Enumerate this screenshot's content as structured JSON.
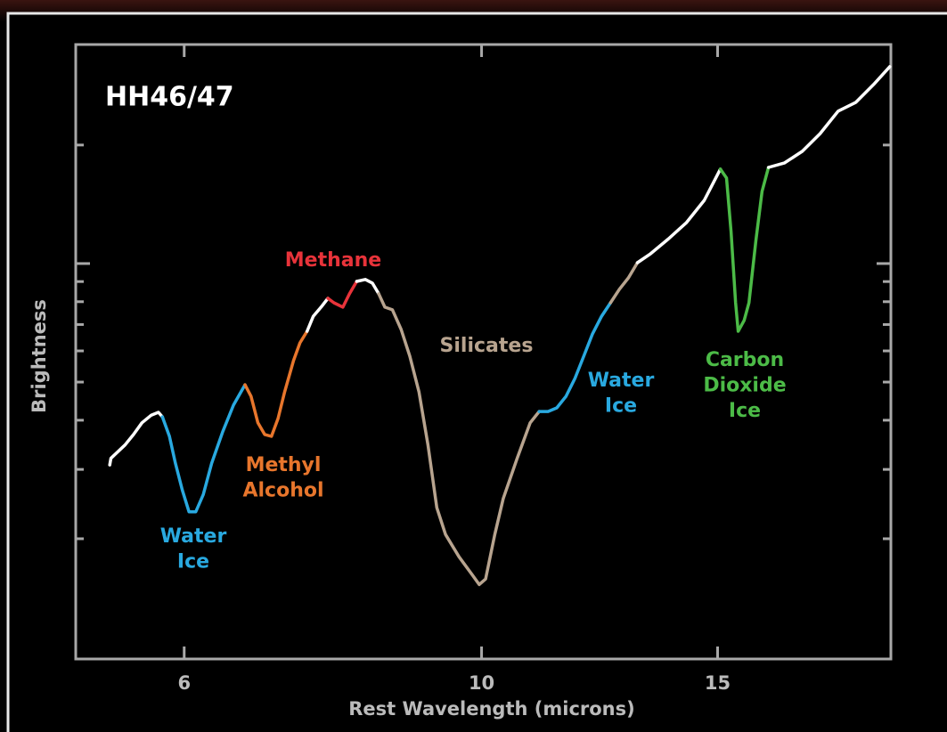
{
  "chart_data": {
    "type": "line",
    "title": "HH46/47",
    "xlabel": "Rest Wavelength (microns)",
    "ylabel": "Brightness",
    "xscale": "log",
    "yscale": "log",
    "xlim": [
      4.98,
      20.2
    ],
    "ylim": [
      0.099,
      3.6
    ],
    "xticks": [
      6,
      10,
      15
    ],
    "yticks": [
      0.2,
      0.3,
      0.4,
      0.5,
      0.6,
      0.7,
      0.8,
      0.9,
      1,
      2
    ],
    "series": [
      {
        "color": "#ffffff",
        "x": [
          5.28,
          5.29,
          5.33,
          5.42,
          5.5,
          5.58,
          5.67,
          5.74,
          5.78
        ],
        "values": [
          0.308,
          0.32,
          0.328,
          0.346,
          0.368,
          0.394,
          0.412,
          0.419,
          0.408
        ]
      },
      {
        "color": "#29a9e0",
        "x": [
          5.78,
          5.85,
          5.91,
          5.98,
          6.05,
          6.12,
          6.2,
          6.29,
          6.41,
          6.53,
          6.66
        ],
        "values": [
          0.408,
          0.364,
          0.311,
          0.266,
          0.234,
          0.234,
          0.259,
          0.311,
          0.374,
          0.437,
          0.492
        ]
      },
      {
        "color": "#e8762c",
        "x": [
          6.66,
          6.73,
          6.81,
          6.89,
          6.97,
          7.05,
          7.13,
          7.24,
          7.32,
          7.41
        ],
        "values": [
          0.492,
          0.46,
          0.394,
          0.368,
          0.364,
          0.404,
          0.472,
          0.567,
          0.629,
          0.673
        ]
      },
      {
        "color": "#ffffff",
        "x": [
          7.41,
          7.49,
          7.59,
          7.68
        ],
        "values": [
          0.673,
          0.735,
          0.775,
          0.816
        ]
      },
      {
        "color": "#e8333a",
        "x": [
          7.68,
          7.76,
          7.88,
          7.97,
          8.07
        ],
        "values": [
          0.816,
          0.795,
          0.775,
          0.838,
          0.901
        ]
      },
      {
        "color": "#ffffff",
        "x": [
          8.07,
          8.19,
          8.29,
          8.38
        ],
        "values": [
          0.901,
          0.911,
          0.892,
          0.838
        ]
      },
      {
        "color": "#b8a48f",
        "x": [
          8.38,
          8.47,
          8.58,
          8.71,
          8.84,
          8.98,
          9.12,
          9.26,
          9.4,
          9.62,
          9.84,
          9.96,
          10.07,
          10.23,
          10.38,
          10.63,
          10.87,
          11.04
        ],
        "values": [
          0.838,
          0.775,
          0.763,
          0.68,
          0.582,
          0.472,
          0.346,
          0.24,
          0.205,
          0.18,
          0.162,
          0.153,
          0.158,
          0.205,
          0.253,
          0.32,
          0.394,
          0.421
        ]
      },
      {
        "color": "#29a9e0",
        "x": [
          11.04,
          11.21,
          11.38,
          11.56,
          11.74,
          11.92,
          12.1,
          12.29,
          12.48
        ],
        "values": [
          0.421,
          0.421,
          0.43,
          0.46,
          0.511,
          0.582,
          0.663,
          0.735,
          0.795
        ]
      },
      {
        "color": "#b8a48f",
        "x": [
          12.48,
          12.67,
          12.87,
          13.07
        ],
        "values": [
          0.795,
          0.86,
          0.92,
          1.005
        ]
      },
      {
        "color": "#ffffff",
        "x": [
          13.07,
          13.37,
          13.79,
          14.22,
          14.66,
          15.07
        ],
        "values": [
          1.005,
          1.059,
          1.157,
          1.271,
          1.447,
          1.737
        ]
      },
      {
        "color": "#4cbb47",
        "x": [
          15.07,
          15.23,
          15.35,
          15.47,
          15.54,
          15.7,
          15.83,
          16.02,
          16.19,
          16.37
        ],
        "values": [
          1.737,
          1.649,
          1.206,
          0.795,
          0.673,
          0.717,
          0.795,
          1.145,
          1.525,
          1.755
        ]
      },
      {
        "color": "#ffffff",
        "x": [
          16.37,
          16.83,
          17.35,
          17.89,
          18.45,
          19.02,
          19.61,
          20.16
        ],
        "values": [
          1.755,
          1.802,
          1.928,
          2.139,
          2.438,
          2.568,
          2.85,
          3.162
        ]
      }
    ],
    "annotations": [
      {
        "lines": [
          "Water",
          "Ice"
        ],
        "color": "#29a9e0"
      },
      {
        "lines": [
          "Methyl",
          "Alcohol"
        ],
        "color": "#e8762c"
      },
      {
        "lines": [
          "Methane"
        ],
        "color": "#e8333a"
      },
      {
        "lines": [
          "Silicates"
        ],
        "color": "#b8a48f"
      },
      {
        "lines": [
          "Water",
          "Ice"
        ],
        "color": "#29a9e0"
      },
      {
        "lines": [
          "Carbon",
          "Dioxide",
          "Ice"
        ],
        "color": "#4cbb47"
      }
    ]
  }
}
